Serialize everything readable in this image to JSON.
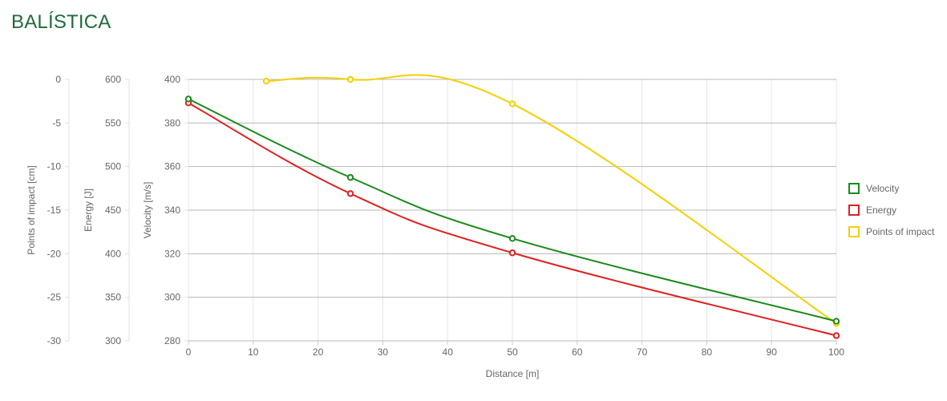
{
  "page": {
    "title": "BALÍSTICA",
    "title_color": "#1e6b3a"
  },
  "chart_data": {
    "type": "line",
    "x": {
      "label": "Distance [m]",
      "range": [
        0,
        100
      ],
      "ticks": [
        0,
        10,
        20,
        30,
        40,
        50,
        60,
        70,
        80,
        90,
        100
      ]
    },
    "y_axes": [
      {
        "id": "velocity",
        "label": "Velocity [m/s]",
        "range": [
          280,
          400
        ],
        "ticks": [
          280,
          300,
          320,
          340,
          360,
          380,
          400
        ]
      },
      {
        "id": "energy",
        "label": "Energy [J]",
        "range": [
          300,
          600
        ],
        "ticks": [
          300,
          350,
          400,
          450,
          500,
          550,
          600
        ]
      },
      {
        "id": "poi",
        "label": "Points of impact [cm]",
        "range": [
          -30,
          0
        ],
        "ticks": [
          -30,
          -25,
          -20,
          -15,
          -10,
          -5,
          0
        ]
      }
    ],
    "series": [
      {
        "name": "Velocity",
        "axis": "velocity",
        "color": "#1a8a1a",
        "points": [
          [
            0,
            391
          ],
          [
            25,
            355
          ],
          [
            50,
            327
          ],
          [
            100,
            289
          ]
        ]
      },
      {
        "name": "Energy",
        "axis": "energy",
        "color": "#e02020",
        "points": [
          [
            0,
            573
          ],
          [
            25,
            469
          ],
          [
            50,
            401
          ],
          [
            100,
            306
          ]
        ]
      },
      {
        "name": "Points of impact",
        "axis": "poi",
        "color": "#f5d000",
        "points": [
          [
            12,
            -0.2
          ],
          [
            25,
            0
          ],
          [
            50,
            -2.8
          ],
          [
            100,
            -28
          ]
        ]
      }
    ],
    "grid": true,
    "legend_position": "right"
  }
}
